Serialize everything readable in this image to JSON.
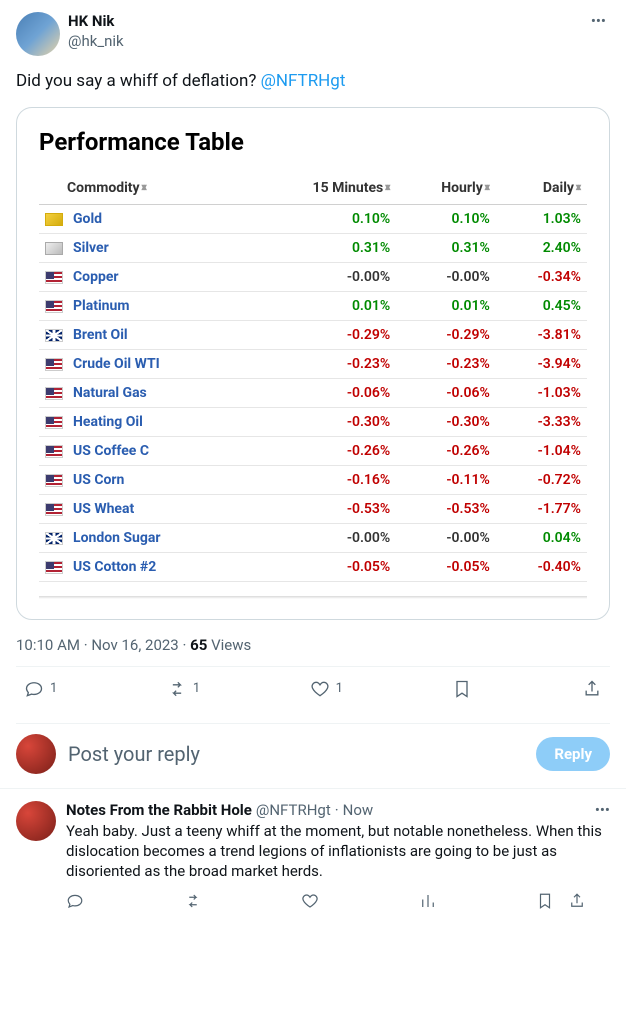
{
  "tweet": {
    "author": {
      "name": "HK Nik",
      "handle": "@hk_nik"
    },
    "text_before": "Did you say a whiff of deflation? ",
    "mention": "@NFTRHgt",
    "time": "10:10 AM",
    "date": "Nov 16, 2023",
    "views_number": "65",
    "views_label": "Views",
    "actions": {
      "reply": "1",
      "retweet": "1",
      "like": "1"
    }
  },
  "table": {
    "title": "Performance Table",
    "columns": [
      "Commodity",
      "15 Minutes",
      "Hourly",
      "Daily"
    ],
    "rows": [
      {
        "flag": "gold",
        "name": "Gold",
        "m15": "0.10%",
        "m15_c": "pos",
        "hr": "0.10%",
        "hr_c": "pos",
        "dy": "1.03%",
        "dy_c": "pos"
      },
      {
        "flag": "silver",
        "name": "Silver",
        "m15": "0.31%",
        "m15_c": "pos",
        "hr": "0.31%",
        "hr_c": "pos",
        "dy": "2.40%",
        "dy_c": "pos"
      },
      {
        "flag": "us",
        "name": "Copper",
        "m15": "-0.00%",
        "m15_c": "neu",
        "hr": "-0.00%",
        "hr_c": "neu",
        "dy": "-0.34%",
        "dy_c": "neg"
      },
      {
        "flag": "us",
        "name": "Platinum",
        "m15": "0.01%",
        "m15_c": "pos",
        "hr": "0.01%",
        "hr_c": "pos",
        "dy": "0.45%",
        "dy_c": "pos"
      },
      {
        "flag": "uk",
        "name": "Brent Oil",
        "m15": "-0.29%",
        "m15_c": "neg",
        "hr": "-0.29%",
        "hr_c": "neg",
        "dy": "-3.81%",
        "dy_c": "neg"
      },
      {
        "flag": "us",
        "name": "Crude Oil WTI",
        "m15": "-0.23%",
        "m15_c": "neg",
        "hr": "-0.23%",
        "hr_c": "neg",
        "dy": "-3.94%",
        "dy_c": "neg"
      },
      {
        "flag": "us",
        "name": "Natural Gas",
        "m15": "-0.06%",
        "m15_c": "neg",
        "hr": "-0.06%",
        "hr_c": "neg",
        "dy": "-1.03%",
        "dy_c": "neg"
      },
      {
        "flag": "us",
        "name": "Heating Oil",
        "m15": "-0.30%",
        "m15_c": "neg",
        "hr": "-0.30%",
        "hr_c": "neg",
        "dy": "-3.33%",
        "dy_c": "neg"
      },
      {
        "flag": "us",
        "name": "US Coffee C",
        "m15": "-0.26%",
        "m15_c": "neg",
        "hr": "-0.26%",
        "hr_c": "neg",
        "dy": "-1.04%",
        "dy_c": "neg"
      },
      {
        "flag": "us",
        "name": "US Corn",
        "m15": "-0.16%",
        "m15_c": "neg",
        "hr": "-0.11%",
        "hr_c": "neg",
        "dy": "-0.72%",
        "dy_c": "neg"
      },
      {
        "flag": "us",
        "name": "US Wheat",
        "m15": "-0.53%",
        "m15_c": "neg",
        "hr": "-0.53%",
        "hr_c": "neg",
        "dy": "-1.77%",
        "dy_c": "neg"
      },
      {
        "flag": "uk",
        "name": "London Sugar",
        "m15": "-0.00%",
        "m15_c": "neu",
        "hr": "-0.00%",
        "hr_c": "neu",
        "dy": "0.04%",
        "dy_c": "pos"
      },
      {
        "flag": "us",
        "name": "US Cotton #2",
        "m15": "-0.05%",
        "m15_c": "neg",
        "hr": "-0.05%",
        "hr_c": "neg",
        "dy": "-0.40%",
        "dy_c": "neg"
      }
    ],
    "colors": {
      "pos": "#008a00",
      "neg": "#c00000",
      "neu": "#333333",
      "link": "#2a5db0",
      "border": "#e6e6e6"
    }
  },
  "compose": {
    "placeholder": "Post your reply",
    "button": "Reply"
  },
  "reply": {
    "author": "Notes From the Rabbit Hole",
    "handle": "@NFTRHgt",
    "time": "Now",
    "body": "Yeah baby. Just a teeny whiff at the moment, but notable nonetheless. When this dislocation becomes a trend legions of inflationists are going to be just as disoriented as the broad market herds."
  }
}
